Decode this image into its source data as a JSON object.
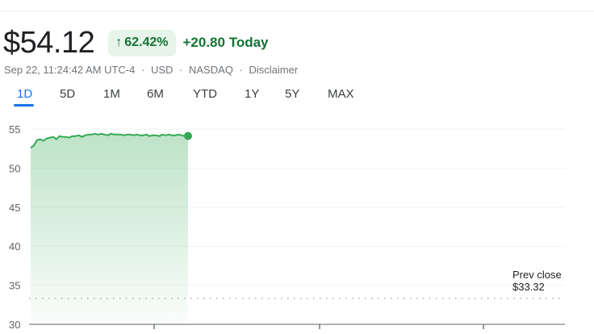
{
  "quote": {
    "price": "$54.12",
    "change_percent": "62.42%",
    "change_arrow": "↑",
    "change_today": "+20.80 Today",
    "timestamp": "Sep 22, 11:24:42 AM UTC-4",
    "currency": "USD",
    "exchange": "NASDAQ",
    "disclaimer": "Disclaimer",
    "separator": "·"
  },
  "tabs": [
    {
      "label": "1D",
      "active": true
    },
    {
      "label": "5D",
      "active": false
    },
    {
      "label": "1M",
      "active": false
    },
    {
      "label": "6M",
      "active": false
    },
    {
      "label": "YTD",
      "active": false
    },
    {
      "label": "1Y",
      "active": false
    },
    {
      "label": "5Y",
      "active": false
    },
    {
      "label": "MAX",
      "active": false
    }
  ],
  "prev_close": {
    "label": "Prev close",
    "value": "$33.32"
  },
  "colors": {
    "positive": "#137333",
    "positive_bg": "#e6f4ea",
    "line": "#34a853",
    "accent": "#1a73e8"
  },
  "chart_data": {
    "type": "area",
    "ylim": [
      30,
      55
    ],
    "y_ticks": [
      55,
      50,
      45,
      40,
      35,
      30
    ],
    "y_tick_labels": [
      "55",
      "50",
      "45",
      "40",
      "35",
      "30"
    ],
    "prev_close": 33.32,
    "grid": true,
    "series": [
      {
        "values": [
          52.6,
          52.9,
          53.6,
          53.7,
          53.5,
          53.8,
          53.9,
          54.0,
          53.7,
          54.1,
          54.0,
          54.0,
          53.9,
          54.1,
          54.1,
          54.2,
          54.0,
          54.2,
          54.3,
          54.3,
          54.4,
          54.3,
          54.4,
          54.3,
          54.2,
          54.4,
          54.3,
          54.3,
          54.3,
          54.2,
          54.3,
          54.3,
          54.2,
          54.3,
          54.2,
          54.2,
          54.3,
          54.1,
          54.2,
          54.2,
          54.1,
          54.3,
          54.2,
          54.3,
          54.2,
          54.2,
          54.3,
          54.2,
          54.1,
          54.12
        ]
      }
    ]
  }
}
